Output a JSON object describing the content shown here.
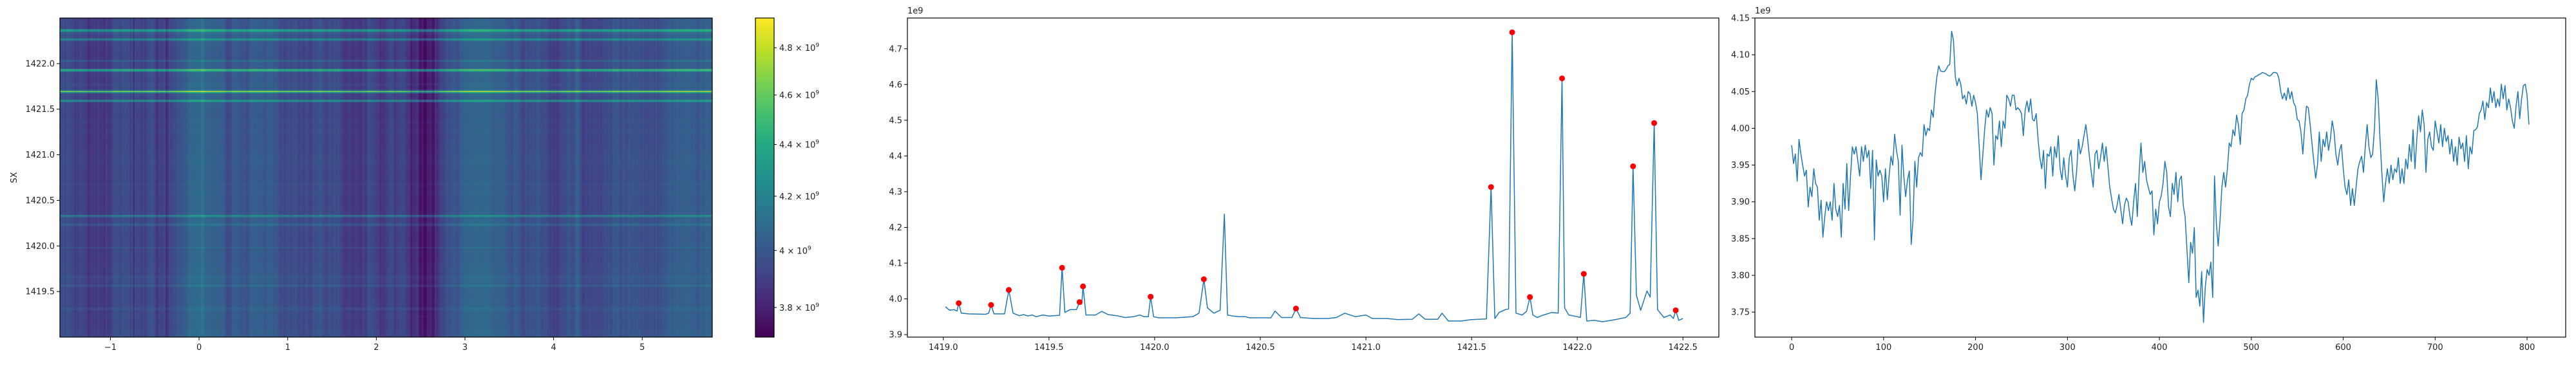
{
  "chart_data": [
    {
      "type": "heatmap",
      "ylabel": "SX",
      "xlim": [
        -1.57,
        5.79
      ],
      "ylim": [
        1419.0,
        1422.5
      ],
      "xticks": [
        -1,
        0,
        1,
        2,
        3,
        4,
        5
      ],
      "xtick_labels": [
        "−1",
        "0",
        "1",
        "2",
        "3",
        "4",
        "5"
      ],
      "yticks": [
        1419.5,
        1420.0,
        1420.5,
        1421.0,
        1421.5,
        1422.0
      ],
      "ytick_labels": [
        "1419.5",
        "1420.0",
        "1420.5",
        "1421.0",
        "1421.5",
        "1422.0"
      ],
      "colormap": "viridis",
      "color_norm": "log",
      "clim": [
        3700000000.0,
        4930000000.0
      ],
      "grid": false,
      "colorbar": {
        "ticks": [
          3800000000.0,
          4000000000.0,
          4200000000.0,
          4400000000.0,
          4600000000.0,
          4800000000.0
        ],
        "tick_labels": [
          {
            "mantissa": "3.8 × 10",
            "exp": "9"
          },
          {
            "mantissa": "4 × 10",
            "exp": "9"
          },
          {
            "mantissa": "4.2 × 10",
            "exp": "9"
          },
          {
            "mantissa": "4.4 × 10",
            "exp": "9"
          },
          {
            "mantissa": "4.6 × 10",
            "exp": "9"
          },
          {
            "mantissa": "4.8 × 10",
            "exp": "9"
          }
        ]
      }
    },
    {
      "type": "line",
      "offset_label": "1e9",
      "xlim": [
        1418.83,
        1422.67
      ],
      "ylim": [
        3.893,
        4.786
      ],
      "xticks": [
        1419.0,
        1419.5,
        1420.0,
        1420.5,
        1421.0,
        1421.5,
        1422.0,
        1422.5
      ],
      "xtick_labels": [
        "1419.0",
        "1419.5",
        "1420.0",
        "1420.5",
        "1421.0",
        "1421.5",
        "1422.0",
        "1422.5"
      ],
      "yticks": [
        3.9,
        4.0,
        4.1,
        4.2,
        4.3,
        4.4,
        4.5,
        4.6,
        4.7
      ],
      "ytick_labels": [
        "3.9",
        "4.0",
        "4.1",
        "4.2",
        "4.3",
        "4.4",
        "4.5",
        "4.6",
        "4.7"
      ],
      "grid": false,
      "line_color": "#1f77b4",
      "marker_color": "#ff0000",
      "points": [
        [
          1419.01,
          3.978
        ],
        [
          1419.03,
          3.968
        ],
        [
          1419.05,
          3.97
        ],
        [
          1419.065,
          3.966
        ],
        [
          1419.073,
          3.988
        ],
        [
          1419.085,
          3.96
        ],
        [
          1419.12,
          3.958
        ],
        [
          1419.2,
          3.957
        ],
        [
          1419.215,
          3.96
        ],
        [
          1419.226,
          3.983
        ],
        [
          1419.24,
          3.958
        ],
        [
          1419.29,
          3.958
        ],
        [
          1419.31,
          4.025
        ],
        [
          1419.33,
          3.96
        ],
        [
          1419.36,
          3.953
        ],
        [
          1419.38,
          3.956
        ],
        [
          1419.4,
          3.952
        ],
        [
          1419.42,
          3.955
        ],
        [
          1419.44,
          3.95
        ],
        [
          1419.47,
          3.955
        ],
        [
          1419.5,
          3.952
        ],
        [
          1419.55,
          3.954
        ],
        [
          1419.562,
          4.087
        ],
        [
          1419.575,
          3.962
        ],
        [
          1419.6,
          3.97
        ],
        [
          1419.63,
          3.97
        ],
        [
          1419.645,
          3.991
        ],
        [
          1419.655,
          3.985
        ],
        [
          1419.661,
          4.035
        ],
        [
          1419.675,
          3.955
        ],
        [
          1419.72,
          3.955
        ],
        [
          1419.75,
          3.965
        ],
        [
          1419.78,
          3.956
        ],
        [
          1419.82,
          3.953
        ],
        [
          1419.86,
          3.948
        ],
        [
          1419.9,
          3.95
        ],
        [
          1419.93,
          3.955
        ],
        [
          1419.95,
          3.95
        ],
        [
          1419.97,
          3.95
        ],
        [
          1419.981,
          4.006
        ],
        [
          1419.995,
          3.95
        ],
        [
          1420.02,
          3.947
        ],
        [
          1420.1,
          3.947
        ],
        [
          1420.18,
          3.95
        ],
        [
          1420.21,
          3.96
        ],
        [
          1420.233,
          4.055
        ],
        [
          1420.25,
          3.975
        ],
        [
          1420.28,
          3.96
        ],
        [
          1420.31,
          3.968
        ],
        [
          1420.33,
          4.237
        ],
        [
          1420.345,
          3.955
        ],
        [
          1420.37,
          3.952
        ],
        [
          1420.4,
          3.95
        ],
        [
          1420.43,
          3.95
        ],
        [
          1420.45,
          3.947
        ],
        [
          1420.55,
          3.947
        ],
        [
          1420.57,
          3.966
        ],
        [
          1420.6,
          3.948
        ],
        [
          1420.65,
          3.948
        ],
        [
          1420.669,
          3.973
        ],
        [
          1420.69,
          3.948
        ],
        [
          1420.75,
          3.945
        ],
        [
          1420.82,
          3.945
        ],
        [
          1420.86,
          3.948
        ],
        [
          1420.9,
          3.96
        ],
        [
          1420.95,
          3.95
        ],
        [
          1421.0,
          3.955
        ],
        [
          1421.03,
          3.945
        ],
        [
          1421.1,
          3.945
        ],
        [
          1421.15,
          3.942
        ],
        [
          1421.22,
          3.943
        ],
        [
          1421.25,
          3.958
        ],
        [
          1421.28,
          3.943
        ],
        [
          1421.34,
          3.943
        ],
        [
          1421.36,
          3.96
        ],
        [
          1421.39,
          3.938
        ],
        [
          1421.45,
          3.938
        ],
        [
          1421.5,
          3.942
        ],
        [
          1421.57,
          3.944
        ],
        [
          1421.592,
          4.313
        ],
        [
          1421.61,
          3.945
        ],
        [
          1421.63,
          3.962
        ],
        [
          1421.66,
          3.97
        ],
        [
          1421.675,
          3.972
        ],
        [
          1421.692,
          4.746
        ],
        [
          1421.71,
          3.96
        ],
        [
          1421.74,
          3.955
        ],
        [
          1421.76,
          3.965
        ],
        [
          1421.776,
          4.005
        ],
        [
          1421.79,
          3.955
        ],
        [
          1421.81,
          3.948
        ],
        [
          1421.84,
          3.955
        ],
        [
          1421.88,
          3.962
        ],
        [
          1421.91,
          3.96
        ],
        [
          1421.928,
          4.617
        ],
        [
          1421.94,
          3.975
        ],
        [
          1421.96,
          3.955
        ],
        [
          1422.0,
          3.95
        ],
        [
          1422.015,
          3.948
        ],
        [
          1422.031,
          4.07
        ],
        [
          1422.045,
          3.938
        ],
        [
          1422.08,
          3.94
        ],
        [
          1422.12,
          3.936
        ],
        [
          1422.18,
          3.942
        ],
        [
          1422.23,
          3.948
        ],
        [
          1422.25,
          3.96
        ],
        [
          1422.264,
          4.371
        ],
        [
          1422.28,
          4.01
        ],
        [
          1422.3,
          3.968
        ],
        [
          1422.33,
          4.022
        ],
        [
          1422.345,
          4.005
        ],
        [
          1422.364,
          4.492
        ],
        [
          1422.38,
          3.97
        ],
        [
          1422.41,
          3.948
        ],
        [
          1422.44,
          3.955
        ],
        [
          1422.455,
          3.945
        ],
        [
          1422.466,
          3.968
        ],
        [
          1422.48,
          3.94
        ],
        [
          1422.5,
          3.945
        ]
      ],
      "peaks": [
        [
          1419.073,
          3.988
        ],
        [
          1419.226,
          3.983
        ],
        [
          1419.31,
          4.025
        ],
        [
          1419.562,
          4.087
        ],
        [
          1419.645,
          3.991
        ],
        [
          1419.661,
          4.035
        ],
        [
          1419.981,
          4.006
        ],
        [
          1420.233,
          4.055
        ],
        [
          1420.669,
          3.973
        ],
        [
          1421.592,
          4.313
        ],
        [
          1421.692,
          4.746
        ],
        [
          1421.776,
          4.005
        ],
        [
          1421.928,
          4.617
        ],
        [
          1422.031,
          4.07
        ],
        [
          1422.264,
          4.371
        ],
        [
          1422.364,
          4.492
        ],
        [
          1422.466,
          3.968
        ]
      ]
    },
    {
      "type": "line",
      "offset_label": "1e9",
      "xlim": [
        -40,
        842
      ],
      "ylim": [
        3.716,
        4.15
      ],
      "xticks": [
        0,
        100,
        200,
        300,
        400,
        500,
        600,
        700,
        800
      ],
      "xtick_labels": [
        "0",
        "100",
        "200",
        "300",
        "400",
        "500",
        "600",
        "700",
        "800"
      ],
      "yticks": [
        3.75,
        3.8,
        3.85,
        3.9,
        3.95,
        4.0,
        4.05,
        4.1,
        4.15
      ],
      "ytick_labels": [
        "3.75",
        "3.80",
        "3.85",
        "3.90",
        "3.95",
        "4.00",
        "4.05",
        "4.10",
        "4.15"
      ],
      "grid": false,
      "line_color": "#1f77b4",
      "x_first": 0,
      "x_last": 802,
      "y": [
        3.977,
        3.952,
        3.965,
        3.928,
        3.985,
        3.965,
        3.95,
        3.935,
        3.943,
        3.893,
        3.92,
        3.907,
        3.945,
        3.925,
        3.92,
        3.875,
        3.902,
        3.852,
        3.88,
        3.9,
        3.888,
        3.9,
        3.875,
        3.925,
        3.89,
        3.88,
        3.895,
        3.852,
        3.925,
        3.89,
        3.952,
        3.888,
        3.935,
        3.975,
        3.965,
        3.975,
        3.955,
        3.935,
        3.975,
        3.955,
        3.977,
        3.96,
        3.97,
        3.918,
        3.97,
        3.848,
        3.957,
        3.935,
        3.943,
        3.935,
        3.9,
        3.945,
        3.903,
        3.935,
        3.962,
        3.95,
        3.992,
        3.97,
        3.955,
        3.882,
        3.977,
        3.935,
        3.907,
        3.93,
        3.942,
        3.842,
        3.875,
        3.955,
        3.92,
        3.96,
        3.967,
        3.962,
        4.005,
        3.99,
        4.0,
        3.997,
        4.025,
        4.015,
        4.048,
        4.07,
        4.085,
        4.078,
        4.077,
        4.077,
        4.08,
        4.085,
        4.087,
        4.132,
        4.12,
        4.07,
        4.058,
        4.068,
        4.06,
        4.04,
        4.045,
        4.033,
        4.05,
        4.047,
        4.03,
        4.045,
        4.035,
        4.02,
        3.975,
        3.93,
        3.965,
        4.0,
        4.025,
        4.015,
        4.028,
        4.02,
        3.95,
        3.99,
        3.985,
        4.01,
        3.975,
        4.01,
        4.0,
        4.045,
        4.04,
        4.03,
        4.045,
        4.045,
        4.025,
        4.028,
        4.025,
        4.02,
        3.99,
        4.025,
        4.037,
        4.022,
        4.04,
        4.012,
        4.01,
        4.02,
        3.985,
        3.96,
        3.945,
        3.97,
        3.918,
        3.965,
        3.962,
        3.975,
        3.935,
        3.975,
        3.96,
        3.99,
        3.945,
        3.93,
        3.96,
        3.935,
        3.92,
        3.96,
        3.97,
        3.935,
        3.915,
        3.942,
        3.985,
        3.965,
        3.975,
        3.99,
        4.005,
        3.985,
        3.96,
        3.94,
        3.92,
        3.965,
        3.97,
        3.945,
        3.96,
        3.98,
        3.955,
        3.975,
        3.948,
        3.92,
        3.905,
        3.89,
        3.885,
        3.895,
        3.91,
        3.89,
        3.87,
        3.895,
        3.905,
        3.9,
        3.88,
        3.868,
        3.9,
        3.925,
        3.88,
        3.94,
        3.98,
        3.94,
        3.955,
        3.93,
        3.92,
        3.91,
        3.915,
        3.855,
        3.89,
        3.87,
        3.9,
        3.908,
        3.925,
        3.955,
        3.94,
        3.893,
        3.88,
        3.925,
        3.91,
        3.94,
        3.9,
        3.93,
        3.935,
        3.895,
        3.88,
        3.835,
        3.79,
        3.845,
        3.83,
        3.865,
        3.77,
        3.78,
        3.758,
        3.805,
        3.736,
        3.785,
        3.808,
        3.8,
        3.818,
        3.77,
        3.935,
        3.87,
        3.84,
        3.875,
        3.92,
        3.94,
        3.92,
        3.945,
        3.98,
        3.975,
        3.998,
        3.99,
        4.018,
        4.005,
        3.978,
        4.02,
        4.025,
        4.04,
        4.045,
        4.06,
        4.068,
        4.066,
        4.07,
        4.071,
        4.073,
        4.074,
        4.076,
        4.075,
        4.074,
        4.072,
        4.071,
        4.073,
        4.076,
        4.076,
        4.075,
        4.068,
        4.05,
        4.04,
        4.048,
        4.038,
        4.055,
        4.04,
        4.05,
        4.035,
        4.03,
        4.012,
        4.01,
        3.995,
        3.965,
        4.0,
        4.03,
        4.028,
        4.005,
        3.98,
        3.955,
        3.932,
        3.95,
        3.995,
        3.955,
        3.985,
        3.975,
        3.995,
        3.97,
        3.985,
        4.01,
        3.995,
        3.965,
        3.95,
        3.97,
        3.978,
        3.945,
        3.92,
        3.91,
        3.93,
        3.895,
        3.918,
        3.895,
        3.92,
        3.945,
        3.955,
        3.962,
        3.94,
        3.975,
        4.005,
        3.975,
        3.96,
        3.965,
        4.0,
        4.066,
        4.04,
        3.985,
        3.94,
        3.9,
        3.925,
        3.945,
        3.925,
        3.95,
        3.93,
        3.945,
        3.94,
        3.96,
        3.925,
        3.945,
        3.925,
        3.958,
        3.945,
        3.978,
        3.955,
        3.998,
        3.945,
        3.985,
        4.017,
        3.995,
        4.025,
        4.005,
        3.94,
        3.985,
        3.995,
        3.975,
        3.97,
        4.01,
        3.995,
        3.98,
        4.005,
        3.975,
        4.0,
        3.982,
        3.99,
        3.965,
        3.985,
        3.955,
        3.975,
        3.95,
        3.988,
        3.972,
        3.98,
        3.955,
        3.99,
        3.945,
        3.975,
        3.965,
        3.997,
        3.998,
        4.002,
        4.02,
        4.025,
        4.037,
        4.012,
        4.035,
        4.028,
        4.055,
        4.035,
        4.05,
        4.028,
        4.04,
        4.03,
        4.06,
        4.04,
        4.058,
        4.025,
        4.04,
        4.028,
        4.01,
        4.0,
        4.03,
        4.05,
        4.013,
        4.04,
        4.058,
        4.06,
        4.045,
        4.005
      ]
    }
  ]
}
